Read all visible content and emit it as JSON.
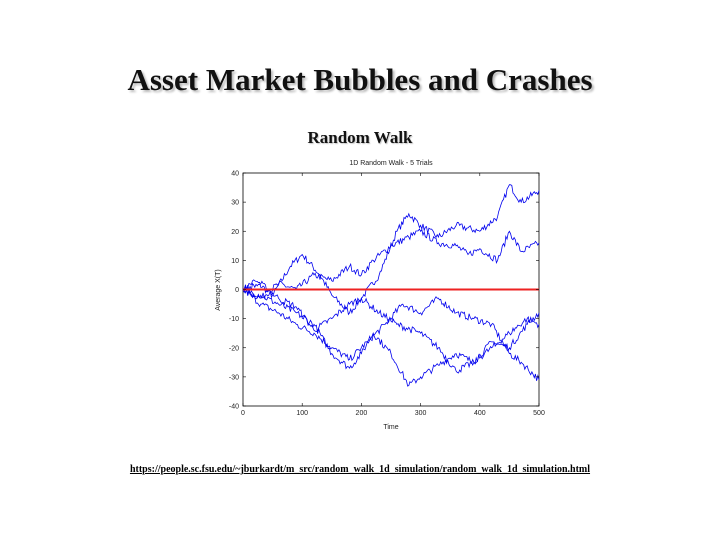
{
  "slide": {
    "title": "Asset Market Bubbles and Crashes",
    "subtitle": "Random Walk",
    "source_url": "https://people.sc.fsu.edu/~jburkardt/m_src/random_walk_1d_simulation/random_walk_1d_simulation.html"
  },
  "chart_data": {
    "type": "line",
    "title": "1D Random Walk - 5 Trials",
    "xlabel": "Time",
    "ylabel": "Average X(T)",
    "xlim": [
      0,
      500
    ],
    "ylim": [
      -40,
      40
    ],
    "xticks": [
      0,
      100,
      200,
      300,
      400,
      500
    ],
    "yticks": [
      -40,
      -30,
      -20,
      -10,
      0,
      10,
      20,
      30,
      40
    ],
    "grid": false,
    "series_color": "#0000ee",
    "reference_line": {
      "y": 0,
      "color": "#ee2222"
    },
    "series": [
      {
        "x": [
          0,
          20,
          50,
          80,
          100,
          130,
          150,
          180,
          200,
          230,
          260,
          280,
          300,
          330,
          360,
          400,
          430,
          450,
          470,
          500
        ],
        "y": [
          0,
          3,
          -2,
          8,
          12,
          5,
          -2,
          -8,
          -3,
          5,
          20,
          26,
          22,
          18,
          22,
          20,
          25,
          36,
          30,
          34
        ]
      },
      {
        "x": [
          0,
          30,
          60,
          90,
          120,
          150,
          180,
          200,
          220,
          250,
          280,
          300,
          330,
          360,
          380,
          400,
          430,
          450,
          470,
          500
        ],
        "y": [
          0,
          -3,
          2,
          0,
          5,
          3,
          8,
          5,
          10,
          15,
          18,
          20,
          16,
          15,
          12,
          14,
          10,
          20,
          13,
          16
        ]
      },
      {
        "x": [
          0,
          30,
          60,
          90,
          120,
          150,
          180,
          210,
          240,
          270,
          300,
          330,
          360,
          390,
          420,
          450,
          470,
          500
        ],
        "y": [
          0,
          -5,
          -8,
          -12,
          -15,
          -20,
          -24,
          -18,
          -12,
          -5,
          -8,
          -3,
          -8,
          -10,
          -12,
          -22,
          -25,
          -31
        ]
      },
      {
        "x": [
          0,
          30,
          60,
          90,
          120,
          150,
          180,
          200,
          220,
          250,
          280,
          300,
          330,
          360,
          390,
          420,
          450,
          480,
          500
        ],
        "y": [
          0,
          -2,
          -5,
          -8,
          -12,
          -22,
          -27,
          -22,
          -15,
          -22,
          -33,
          -30,
          -26,
          -22,
          -25,
          -18,
          -20,
          -12,
          -8
        ]
      },
      {
        "x": [
          0,
          30,
          60,
          90,
          120,
          150,
          180,
          200,
          230,
          260,
          300,
          330,
          360,
          390,
          420,
          450,
          480,
          500
        ],
        "y": [
          0,
          2,
          -3,
          -6,
          -14,
          -10,
          -5,
          -3,
          -8,
          -12,
          -15,
          -20,
          -28,
          -25,
          -20,
          -15,
          -10,
          -12
        ]
      }
    ]
  }
}
